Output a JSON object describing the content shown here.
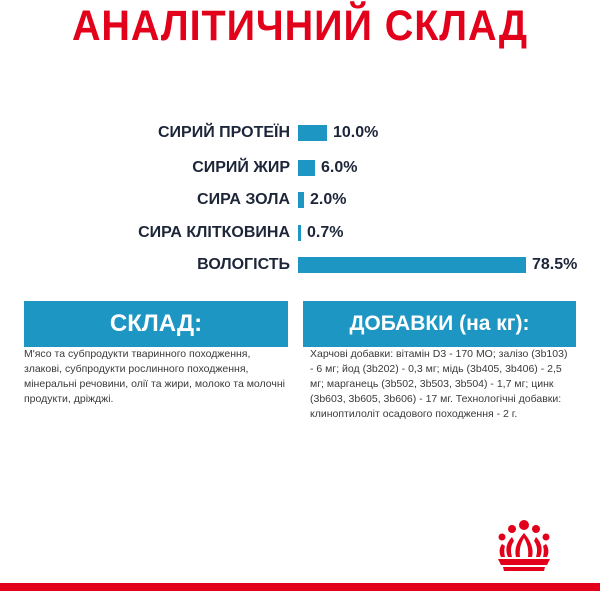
{
  "title": "АНАЛІТИЧНИЙ СКЛАД",
  "analysis": [
    {
      "label": "СИРИЙ ПРОТЕЇН",
      "value": "10.0%",
      "percent": 10.0
    },
    {
      "label": "СИРИЙ ЖИР",
      "value": "6.0%",
      "percent": 6.0
    },
    {
      "label": "СИРА ЗОЛА",
      "value": "2.0%",
      "percent": 2.0
    },
    {
      "label": "СИРА КЛІТКОВИНА",
      "value": "0.7%",
      "percent": 0.7
    },
    {
      "label": "ВОЛОГІСТЬ",
      "value": "78.5%",
      "percent": 78.5
    }
  ],
  "composition": {
    "header": "СКЛАД:",
    "text": "М'ясо та субпродукти тваринного походження, злакові, субпродукти рослинного походження, мінеральні речовини, олії та жири, молоко та молочні продукти, дріжджі."
  },
  "additives": {
    "header": "ДОБАВКИ (на кг):",
    "text": "Харчові добавки: вітамін D3 - 170 МО; залізо (3b103) - 6 мг; йод (3b202) - 0,3 мг; мідь (3b405, 3b406) - 2,5 мг; марганець (3b502, 3b503, 3b504) - 1,7 мг; цинк (3b603, 3b605, 3b606) - 17 мг. Технологічні добавки: клиноптилоліт осадового походження - 2 г."
  },
  "colors": {
    "accent_red": "#e2001a",
    "bar_blue": "#1e96c3",
    "label_dark": "#1d2639"
  },
  "logo": {
    "name": "crown-logo-icon"
  }
}
